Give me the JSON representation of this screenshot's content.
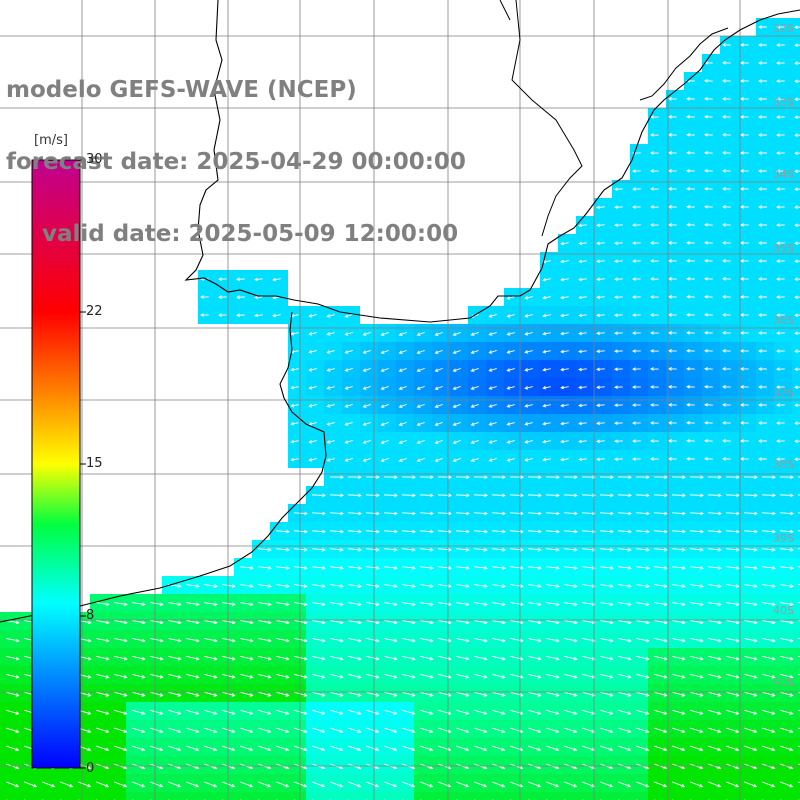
{
  "title": {
    "model": "modelo GEFS-WAVE (NCEP)",
    "forecast": "forecast date: 2025-04-29 00:00:00",
    "valid": "valid date: 2025-05-09 12:00:00"
  },
  "colorbar": {
    "unit": "[m/s]",
    "ticks": [
      "30",
      "22",
      "15",
      "8",
      "0"
    ],
    "range": [
      0,
      30
    ],
    "colors": [
      "#0000ff",
      "#0080ff",
      "#00ffff",
      "#00ff00",
      "#ffff00",
      "#ff8000",
      "#ff0000",
      "#c000a0"
    ]
  },
  "latitude_labels": [
    "32S",
    "33S",
    "34S",
    "35S",
    "36S",
    "37S",
    "38S",
    "39S",
    "40S",
    "41S"
  ],
  "colors": {
    "land": "#ffffff",
    "coastline": "#000000",
    "grid": "#7f7f7f",
    "arrows": "#ffffff",
    "title_text": "#808080"
  },
  "layers": [
    "wind-speed-field",
    "wind-arrows",
    "coastline",
    "graticule"
  ]
}
